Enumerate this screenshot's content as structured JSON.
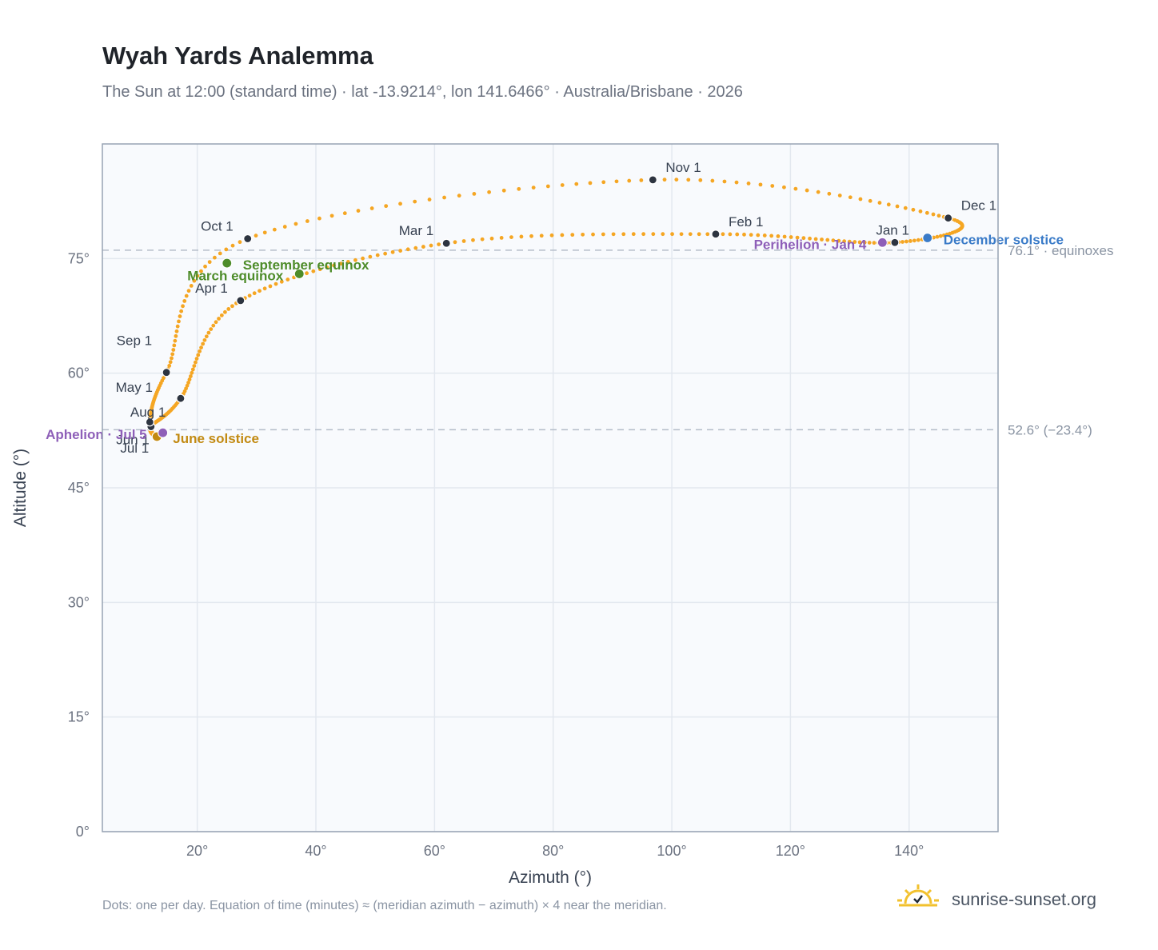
{
  "header": {
    "title": "Wyah Yards Analemma",
    "subtitle": "The Sun at 12:00 (standard time) · lat -13.9214°, lon 141.6466° · Australia/Brisbane · 2026"
  },
  "footer": {
    "note": "Dots: one per day. Equation of time (minutes) ≈ (meridian azimuth − azimuth) × 4 near the meridian.",
    "brand": "sunrise-sunset.org"
  },
  "chart_data": {
    "type": "scatter",
    "title": "Wyah Yards Analemma",
    "xlabel": "Azimuth (°)",
    "ylabel": "Altitude (°)",
    "xlim": [
      4,
      155
    ],
    "ylim": [
      0,
      90
    ],
    "x_ticks": [
      {
        "v": 20,
        "label": "20°"
      },
      {
        "v": 40,
        "label": "40°"
      },
      {
        "v": 60,
        "label": "60°"
      },
      {
        "v": 80,
        "label": "80°"
      },
      {
        "v": 100,
        "label": "100°"
      },
      {
        "v": 120,
        "label": "120°"
      },
      {
        "v": 140,
        "label": "140°"
      }
    ],
    "y_ticks": [
      {
        "v": 0,
        "label": "0°"
      },
      {
        "v": 15,
        "label": "15°"
      },
      {
        "v": 30,
        "label": "30°"
      },
      {
        "v": 45,
        "label": "45°"
      },
      {
        "v": 60,
        "label": "60°"
      },
      {
        "v": 75,
        "label": "75°"
      }
    ],
    "grid": true,
    "series_color": "#f5a623",
    "reference_lines": [
      {
        "y": 76.1,
        "label": "76.1° · equinoxes"
      },
      {
        "y": 52.6,
        "label": "52.6° (−23.4°)"
      }
    ],
    "month_markers": [
      {
        "label": "Jan 1",
        "x": 137.6,
        "y": 77.1
      },
      {
        "label": "Feb 1",
        "x": 107.4,
        "y": 78.2
      },
      {
        "label": "Mar 1",
        "x": 62.0,
        "y": 77.0
      },
      {
        "label": "Apr 1",
        "x": 27.3,
        "y": 69.5
      },
      {
        "label": "May 1",
        "x": 17.2,
        "y": 56.7
      },
      {
        "label": "Jun 1",
        "x": 12.2,
        "y": 53.0
      },
      {
        "label": "Jul 1",
        "x": 13.2,
        "y": 51.7
      },
      {
        "label": "Aug 1",
        "x": 12.0,
        "y": 53.6
      },
      {
        "label": "Sep 1",
        "x": 14.8,
        "y": 60.1
      },
      {
        "label": "Oct 1",
        "x": 28.5,
        "y": 77.6
      },
      {
        "label": "Nov 1",
        "x": 96.8,
        "y": 85.3
      },
      {
        "label": "Dec 1",
        "x": 146.6,
        "y": 80.3
      }
    ],
    "events": [
      {
        "label": "March equinox",
        "x": 37.2,
        "y": 73.0,
        "color": "#4e8c2a"
      },
      {
        "label": "September equinox",
        "x": 25.0,
        "y": 74.4,
        "color": "#4e8c2a"
      },
      {
        "label": "June solstice",
        "x": 13.2,
        "y": 51.7,
        "color": "#c28a12"
      },
      {
        "label": "December solstice",
        "x": 143.1,
        "y": 77.7,
        "color": "#3a7bc8"
      },
      {
        "label": "Aphelion · Jul 5",
        "x": 14.2,
        "y": 52.2,
        "color": "#8e5fb8"
      },
      {
        "label": "Perihelion · Jan 4",
        "x": 135.5,
        "y": 77.1,
        "color": "#8e5fb8"
      }
    ]
  }
}
